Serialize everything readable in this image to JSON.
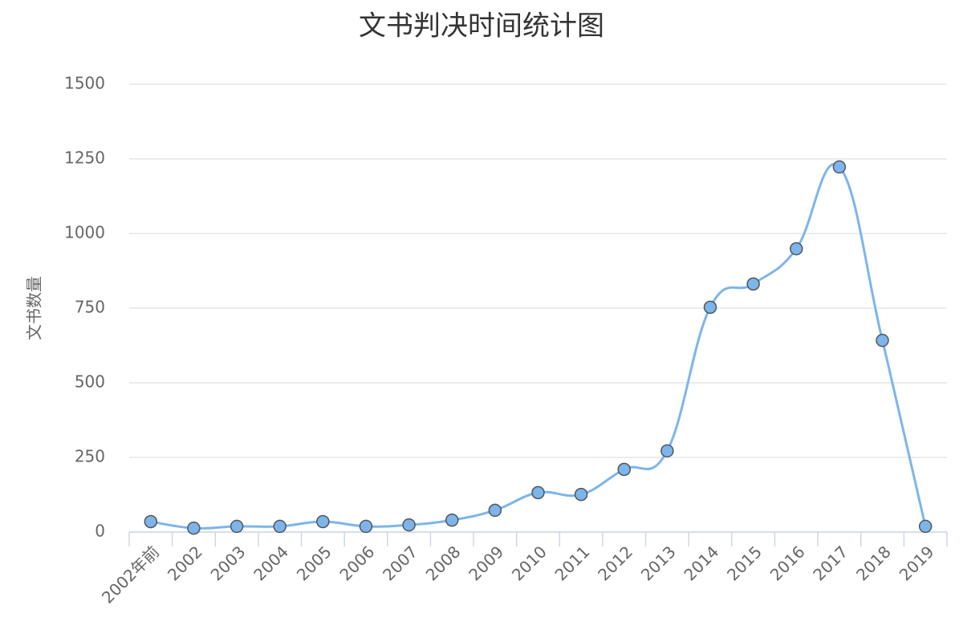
{
  "chart_data": {
    "type": "line",
    "title": "文书判决时间统计图",
    "y_label": "文书数量",
    "categories": [
      "2002年前",
      "2002",
      "2003",
      "2004",
      "2005",
      "2006",
      "2007",
      "2008",
      "2009",
      "2010",
      "2011",
      "2012",
      "2013",
      "2014",
      "2015",
      "2016",
      "2017",
      "2018",
      "2019"
    ],
    "values": [
      35,
      13,
      19,
      19,
      35,
      19,
      24,
      40,
      73,
      132,
      126,
      210,
      272,
      753,
      831,
      949,
      1223,
      642,
      19
    ],
    "color": "#7cb5ec",
    "smooth": true,
    "ylim": [
      0,
      1500
    ],
    "yticks": [
      0,
      250,
      500,
      750,
      1000,
      1250,
      1500
    ],
    "grid": true
  }
}
